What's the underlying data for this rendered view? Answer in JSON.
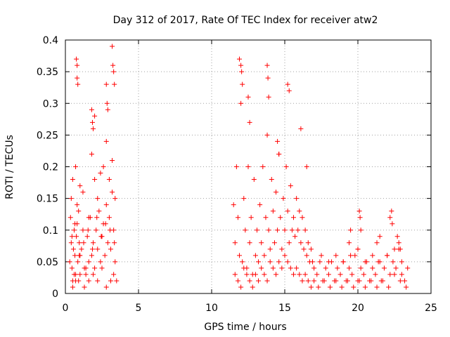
{
  "chart_data": {
    "type": "scatter",
    "title": "Day 312 of 2017, Rate Of TEC Index for receiver atw2",
    "xlabel": "GPS time / hours",
    "ylabel": "ROTI / TECUs",
    "xlim": [
      0,
      25
    ],
    "ylim": [
      0,
      0.4
    ],
    "x_ticks": [
      0,
      5,
      10,
      15,
      20,
      25
    ],
    "y_ticks": [
      0,
      0.05,
      0.1,
      0.15,
      0.2,
      0.25,
      0.3,
      0.35,
      0.4
    ],
    "x_tick_labels": [
      "0",
      "5",
      "10",
      "15",
      "20",
      "25"
    ],
    "y_tick_labels": [
      "0",
      "0.05",
      "0.1",
      "0.15",
      "0.2",
      "0.25",
      "0.3",
      "0.35",
      "0.4"
    ],
    "grid": true,
    "marker": "plus",
    "color": "#ff0000",
    "series": [
      {
        "x": [
          0.3,
          0.35,
          0.4,
          0.45,
          0.5,
          0.55,
          0.6,
          0.65,
          0.7,
          0.75,
          0.8,
          0.85,
          0.9,
          0.95,
          1.0,
          1.1,
          1.2,
          1.3,
          1.4,
          1.5,
          1.6,
          1.7,
          1.8,
          1.9,
          2.0,
          2.1,
          2.2,
          2.3,
          2.4,
          2.5,
          2.6,
          2.7,
          2.8,
          2.9,
          3.0,
          3.1,
          3.2,
          3.3,
          3.4,
          3.5,
          0.4,
          0.5,
          0.6,
          0.7,
          0.8,
          0.9,
          1.0,
          1.2,
          1.4,
          1.6,
          1.8,
          2.0,
          2.2,
          2.4,
          2.6,
          2.8,
          3.0,
          3.2,
          3.4,
          0.75,
          0.8,
          0.85,
          0.8,
          1.8,
          1.85,
          1.9,
          2.0,
          2.8,
          2.85,
          2.9,
          3.2,
          3.25,
          3.3,
          3.35,
          0.5,
          0.7,
          1.0,
          1.3,
          1.6,
          1.9,
          2.2,
          2.5,
          2.8,
          3.1,
          3.3,
          0.45,
          0.65,
          0.95,
          1.25,
          1.55,
          1.85,
          2.15,
          2.45,
          2.75,
          3.05,
          3.35,
          11.5,
          11.6,
          11.7,
          11.8,
          11.9,
          12.0,
          12.1,
          12.2,
          12.3,
          12.4,
          12.5,
          12.6,
          12.7,
          12.8,
          12.9,
          13.0,
          13.1,
          13.2,
          13.3,
          13.4,
          13.5,
          13.6,
          13.7,
          13.8,
          13.9,
          14.0,
          14.1,
          14.2,
          14.3,
          14.4,
          14.5,
          14.6,
          14.7,
          14.8,
          14.9,
          15.0,
          15.1,
          15.2,
          15.3,
          15.4,
          15.5,
          15.6,
          15.7,
          15.8,
          15.9,
          16.0,
          16.1,
          16.2,
          16.3,
          16.4,
          16.5,
          16.6,
          16.7,
          16.8,
          16.9,
          17.0,
          11.9,
          12.0,
          12.05,
          12.1,
          12.5,
          12.6,
          13.8,
          13.85,
          13.9,
          14.5,
          14.6,
          15.2,
          15.3,
          16.1,
          16.5,
          11.6,
          11.8,
          12.0,
          12.2,
          12.4,
          12.6,
          12.8,
          13.0,
          13.2,
          13.4,
          13.6,
          13.8,
          14.0,
          14.2,
          14.4,
          14.6,
          14.8,
          15.0,
          15.2,
          15.4,
          15.6,
          15.8,
          16.0,
          16.2,
          16.4,
          16.6,
          16.8,
          17.0,
          17.2,
          17.4,
          17.6,
          17.8,
          18.0,
          18.2,
          18.4,
          18.6,
          18.8,
          19.0,
          19.2,
          19.4,
          19.6,
          19.8,
          20.0,
          20.2,
          20.4,
          20.6,
          20.8,
          21.0,
          21.2,
          21.4,
          21.6,
          21.8,
          22.0,
          22.2,
          22.4,
          22.6,
          22.8,
          23.0,
          23.2,
          23.4,
          17.3,
          17.7,
          18.1,
          18.5,
          18.9,
          19.3,
          19.7,
          20.1,
          20.5,
          20.9,
          21.3,
          21.7,
          22.1,
          22.5,
          22.9,
          23.3,
          17.5,
          18.0,
          18.5,
          19.0,
          19.5,
          20.0,
          20.5,
          21.0,
          21.5,
          22.0,
          22.5,
          23.0,
          19.4,
          19.5,
          20.0,
          20.1,
          20.15,
          20.2,
          21.3,
          21.5,
          22.2,
          22.3,
          22.35,
          22.7,
          22.8,
          22.9
        ],
        "y": [
          0.05,
          0.12,
          0.08,
          0.04,
          0.02,
          0.07,
          0.1,
          0.06,
          0.03,
          0.09,
          0.11,
          0.05,
          0.02,
          0.08,
          0.06,
          0.07,
          0.1,
          0.04,
          0.03,
          0.09,
          0.05,
          0.12,
          0.06,
          0.08,
          0.04,
          0.1,
          0.07,
          0.13,
          0.05,
          0.09,
          0.11,
          0.06,
          0.14,
          0.08,
          0.12,
          0.07,
          0.16,
          0.1,
          0.05,
          0.02,
          0.15,
          0.18,
          0.03,
          0.2,
          0.14,
          0.13,
          0.17,
          0.16,
          0.04,
          0.12,
          0.22,
          0.18,
          0.15,
          0.19,
          0.2,
          0.24,
          0.18,
          0.21,
          0.15,
          0.37,
          0.34,
          0.33,
          0.36,
          0.29,
          0.27,
          0.26,
          0.28,
          0.33,
          0.3,
          0.29,
          0.39,
          0.36,
          0.35,
          0.33,
          0.01,
          0.02,
          0.03,
          0.01,
          0.02,
          0.03,
          0.02,
          0.04,
          0.01,
          0.02,
          0.03,
          0.09,
          0.11,
          0.06,
          0.08,
          0.1,
          0.07,
          0.12,
          0.09,
          0.11,
          0.1,
          0.08,
          0.14,
          0.08,
          0.2,
          0.12,
          0.06,
          0.3,
          0.05,
          0.15,
          0.1,
          0.04,
          0.2,
          0.08,
          0.12,
          0.03,
          0.18,
          0.06,
          0.1,
          0.05,
          0.14,
          0.08,
          0.2,
          0.06,
          0.12,
          0.25,
          0.1,
          0.07,
          0.18,
          0.13,
          0.08,
          0.16,
          0.1,
          0.22,
          0.12,
          0.07,
          0.15,
          0.1,
          0.2,
          0.13,
          0.08,
          0.17,
          0.1,
          0.12,
          0.09,
          0.15,
          0.1,
          0.13,
          0.08,
          0.12,
          0.07,
          0.1,
          0.06,
          0.08,
          0.05,
          0.07,
          0.05,
          0.04,
          0.37,
          0.36,
          0.35,
          0.33,
          0.31,
          0.27,
          0.36,
          0.34,
          0.31,
          0.24,
          0.22,
          0.33,
          0.32,
          0.26,
          0.2,
          0.03,
          0.02,
          0.01,
          0.04,
          0.03,
          0.02,
          0.01,
          0.03,
          0.02,
          0.04,
          0.03,
          0.02,
          0.05,
          0.04,
          0.03,
          0.05,
          0.04,
          0.06,
          0.05,
          0.04,
          0.03,
          0.04,
          0.03,
          0.02,
          0.03,
          0.02,
          0.01,
          0.02,
          0.03,
          0.05,
          0.02,
          0.04,
          0.03,
          0.05,
          0.02,
          0.04,
          0.03,
          0.05,
          0.02,
          0.04,
          0.03,
          0.06,
          0.02,
          0.04,
          0.03,
          0.05,
          0.02,
          0.04,
          0.03,
          0.05,
          0.02,
          0.04,
          0.06,
          0.03,
          0.05,
          0.04,
          0.07,
          0.03,
          0.02,
          0.04,
          0.01,
          0.02,
          0.01,
          0.02,
          0.01,
          0.02,
          0.01,
          0.02,
          0.01,
          0.02,
          0.01,
          0.02,
          0.01,
          0.03,
          0.02,
          0.01,
          0.06,
          0.05,
          0.06,
          0.05,
          0.06,
          0.07,
          0.05,
          0.06,
          0.05,
          0.06,
          0.07,
          0.05,
          0.08,
          0.1,
          0.07,
          0.13,
          0.12,
          0.1,
          0.08,
          0.09,
          0.12,
          0.13,
          0.11,
          0.09,
          0.08,
          0.07
        ]
      }
    ]
  }
}
